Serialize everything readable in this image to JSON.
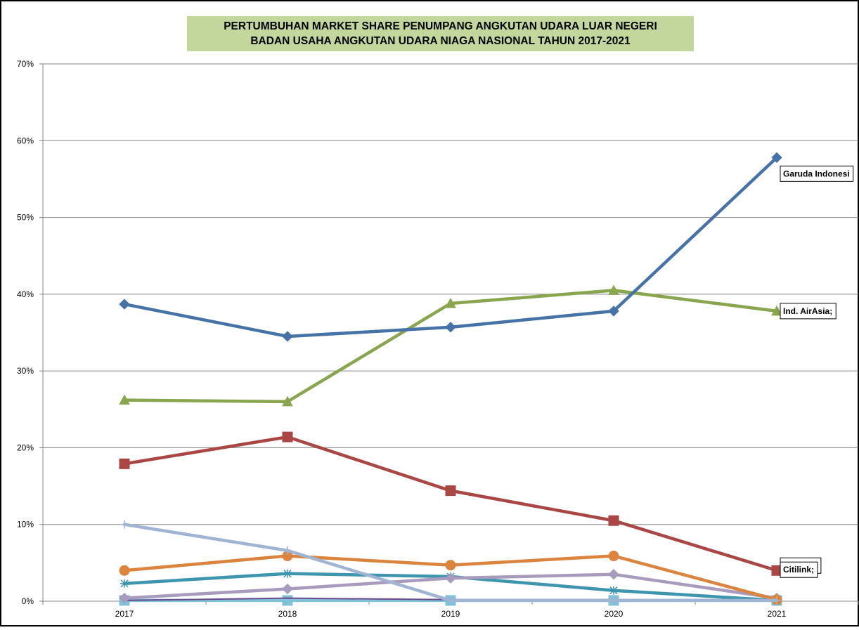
{
  "chart_data": {
    "type": "line",
    "title": "PERTUMBUHAN MARKET SHARE PENUMPANG ANGKUTAN UDARA LUAR NEGERI",
    "subtitle": "BADAN USAHA ANGKUTAN UDARA NIAGA NASIONAL TAHUN 2017-2021",
    "title_bg": "#c3d69b",
    "xlabel": "",
    "ylabel": "",
    "categories": [
      "2017",
      "2018",
      "2019",
      "2020",
      "2021"
    ],
    "ylim": [
      0,
      70
    ],
    "yticks": [
      0,
      10,
      20,
      30,
      40,
      50,
      60,
      70
    ],
    "ytick_labels": [
      "0%",
      "10%",
      "20%",
      "30%",
      "40%",
      "50%",
      "60%",
      "70%"
    ],
    "grid": true,
    "legend": "none",
    "series": [
      {
        "label": "Garuda Indonesi",
        "color": "#4572a7",
        "marker": "diamond",
        "values": [
          38.7,
          34.5,
          35.7,
          37.8,
          57.8
        ]
      },
      {
        "label": "Ind. AirAsia;",
        "color": "#89a54e",
        "marker": "triangle",
        "values": [
          26.2,
          26.0,
          38.8,
          40.5,
          37.8
        ]
      },
      {
        "label": "Lion Air;",
        "color": "#aa4643",
        "marker": "square",
        "values": [
          17.9,
          21.4,
          14.4,
          10.5,
          4.0
        ]
      },
      {
        "label": "",
        "color": "#a0b4d4",
        "marker": "plus",
        "values": [
          10.0,
          6.6,
          0.1,
          0.1,
          0.1
        ]
      },
      {
        "label": "",
        "color": "#db843d",
        "marker": "circle",
        "values": [
          4.0,
          5.9,
          4.7,
          5.9,
          0.2
        ]
      },
      {
        "label": "Citilink;",
        "color": "#a99bbd",
        "marker": "diamond",
        "values": [
          0.4,
          1.6,
          3.0,
          3.5,
          0.4
        ]
      },
      {
        "label": "",
        "color": "#3d96ae",
        "marker": "star",
        "values": [
          2.3,
          3.6,
          3.2,
          1.4,
          0.1
        ]
      },
      {
        "label": "",
        "color": "#6a4a8c",
        "marker": "none",
        "values": [
          0.1,
          0.4,
          0.2,
          0.2,
          0.1
        ]
      },
      {
        "label": "",
        "color": "#80c0d8",
        "marker": "square",
        "values": [
          0.1,
          0.1,
          0.1,
          0.1,
          0.1
        ]
      }
    ]
  }
}
